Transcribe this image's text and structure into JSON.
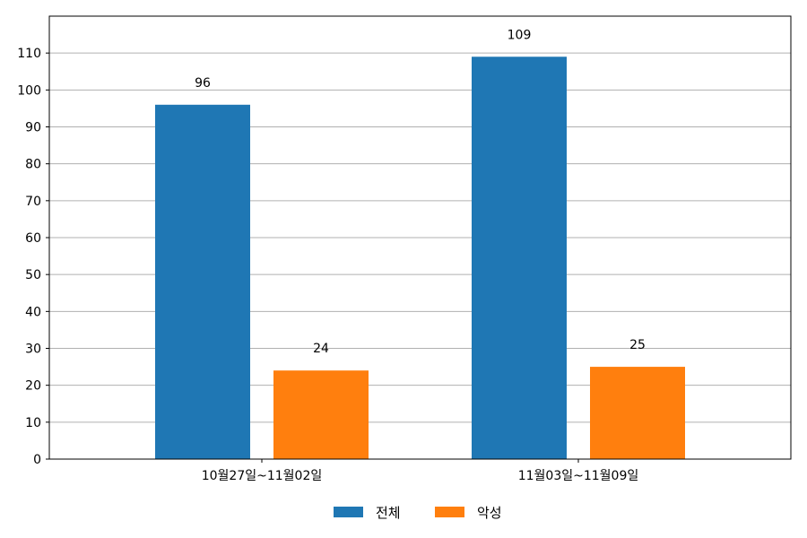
{
  "chart_data": {
    "type": "bar",
    "categories": [
      "10월27일~11월02일",
      "11월03일~11월09일"
    ],
    "series": [
      {
        "name": "전체",
        "values": [
          96,
          109
        ],
        "color": "#1f77b4"
      },
      {
        "name": "악성",
        "values": [
          24,
          25
        ],
        "color": "#ff7f0e"
      }
    ],
    "ylim": [
      0,
      120
    ],
    "yticks": [
      0,
      10,
      20,
      30,
      40,
      50,
      60,
      70,
      80,
      90,
      100,
      110
    ],
    "grid": "y",
    "legend_placement": "bottom-center",
    "data_labels": true
  }
}
